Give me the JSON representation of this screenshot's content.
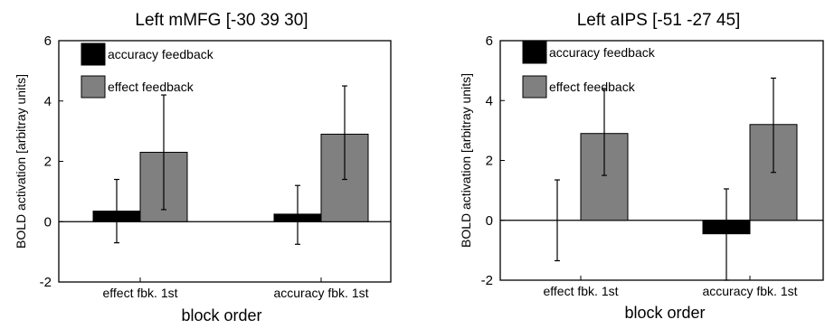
{
  "chart_data": [
    {
      "type": "bar",
      "title": "Left mMFG [-30 39 30]",
      "xlabel": "block order",
      "ylabel": "BOLD activation [arbitray units]",
      "ylim": [
        -2,
        6
      ],
      "yticks": [
        "-2",
        "0",
        "2",
        "4",
        "6"
      ],
      "categories": [
        "effect fbk. 1st",
        "accuracy fbk. 1st"
      ],
      "legend_position": "top-left",
      "grid": false,
      "series": [
        {
          "name": "accuracy feedback",
          "color": "#000000",
          "values": [
            0.35,
            0.25
          ],
          "err_low": [
            -0.7,
            -0.75
          ],
          "err_high": [
            1.4,
            1.2
          ]
        },
        {
          "name": "effect feedback",
          "color": "#808080",
          "values": [
            2.3,
            2.9
          ],
          "err_low": [
            0.4,
            1.4
          ],
          "err_high": [
            4.2,
            4.5
          ]
        }
      ]
    },
    {
      "type": "bar",
      "title": "Left aIPS [-51 -27 45]",
      "xlabel": "block order",
      "ylabel": "BOLD activation [arbitray units]",
      "ylim": [
        -2,
        6
      ],
      "yticks": [
        "-2",
        "0",
        "2",
        "4",
        "6"
      ],
      "categories": [
        "effect fbk. 1st",
        "accuracy fbk. 1st"
      ],
      "legend_position": "top-left",
      "grid": false,
      "series": [
        {
          "name": "accuracy feedback",
          "color": "#000000",
          "values": [
            0.0,
            -0.45
          ],
          "err_low": [
            -1.35,
            -2.0
          ],
          "err_high": [
            1.35,
            1.05
          ]
        },
        {
          "name": "effect feedback",
          "color": "#808080",
          "values": [
            2.9,
            3.2
          ],
          "err_low": [
            1.5,
            1.6
          ],
          "err_high": [
            4.4,
            4.75
          ]
        }
      ]
    }
  ]
}
